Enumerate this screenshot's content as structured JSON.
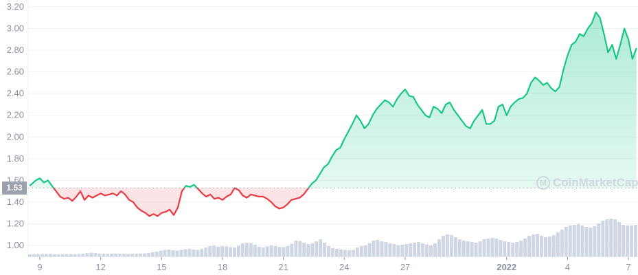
{
  "chart_data": {
    "type": "line",
    "title": "",
    "xlabel": "",
    "ylabel": "",
    "ylim": [
      0.9,
      3.22
    ],
    "grid": true,
    "reference_value": 1.53,
    "reference_label": "1.53",
    "y_ticks": [
      "3.20",
      "3.00",
      "2.80",
      "2.60",
      "2.40",
      "2.20",
      "2.00",
      "1.80",
      "1.60",
      "1.40",
      "1.20",
      "1.00"
    ],
    "x_ticks": [
      {
        "label": "9",
        "day": 9
      },
      {
        "label": "12",
        "day": 12
      },
      {
        "label": "15",
        "day": 15
      },
      {
        "label": "18",
        "day": 18
      },
      {
        "label": "21",
        "day": 21
      },
      {
        "label": "24",
        "day": 24
      },
      {
        "label": "27",
        "day": 27
      },
      {
        "label": "2022",
        "day": 32,
        "bold": true
      },
      {
        "label": "4",
        "day": 35
      },
      {
        "label": "7",
        "day": 38
      }
    ],
    "colors": {
      "up": "#16c784",
      "down": "#ea3943",
      "volume": "#cfd6e4",
      "grid": "#eff1f4",
      "axis_text": "#8a91a3"
    },
    "series": [
      {
        "name": "Price",
        "x": [
          8.5,
          8.8,
          9.0,
          9.2,
          9.4,
          9.6,
          9.8,
          10.0,
          10.2,
          10.4,
          10.6,
          10.8,
          11.0,
          11.2,
          11.4,
          11.6,
          11.8,
          12.0,
          12.2,
          12.4,
          12.6,
          12.8,
          13.0,
          13.2,
          13.4,
          13.6,
          13.8,
          14.0,
          14.2,
          14.4,
          14.6,
          14.8,
          15.0,
          15.2,
          15.4,
          15.6,
          15.8,
          16.0,
          16.2,
          16.4,
          16.6,
          16.8,
          17.0,
          17.2,
          17.4,
          17.6,
          17.8,
          18.0,
          18.2,
          18.4,
          18.6,
          18.8,
          19.0,
          19.2,
          19.4,
          19.6,
          19.8,
          20.0,
          20.2,
          20.4,
          20.6,
          20.8,
          21.0,
          21.2,
          21.4,
          21.6,
          21.8,
          22.0,
          22.2,
          22.4,
          22.6,
          22.8,
          23.0,
          23.2,
          23.4,
          23.6,
          23.8,
          24.0,
          24.2,
          24.4,
          24.6,
          24.8,
          25.0,
          25.2,
          25.4,
          25.6,
          25.8,
          26.0,
          26.2,
          26.4,
          26.6,
          26.8,
          27.0,
          27.2,
          27.4,
          27.6,
          27.8,
          28.0,
          28.2,
          28.4,
          28.6,
          28.8,
          29.0,
          29.2,
          29.4,
          29.6,
          29.8,
          30.0,
          30.2,
          30.4,
          30.6,
          30.8,
          31.0,
          31.2,
          31.4,
          31.6,
          31.8,
          32.0,
          32.2,
          32.4,
          32.6,
          32.8,
          33.0,
          33.2,
          33.4,
          33.6,
          33.8,
          34.0,
          34.2,
          34.4,
          34.6,
          34.8,
          35.0,
          35.2,
          35.4,
          35.6,
          35.8,
          36.0,
          36.2,
          36.4,
          36.6,
          36.8,
          37.0,
          37.2,
          37.4,
          37.6,
          37.8,
          38.0,
          38.2,
          38.4
        ],
        "values": [
          1.55,
          1.6,
          1.62,
          1.58,
          1.6,
          1.55,
          1.5,
          1.45,
          1.43,
          1.44,
          1.41,
          1.45,
          1.5,
          1.42,
          1.46,
          1.44,
          1.46,
          1.48,
          1.46,
          1.47,
          1.48,
          1.46,
          1.5,
          1.47,
          1.42,
          1.4,
          1.35,
          1.32,
          1.3,
          1.27,
          1.29,
          1.27,
          1.3,
          1.31,
          1.33,
          1.28,
          1.35,
          1.5,
          1.55,
          1.54,
          1.56,
          1.52,
          1.48,
          1.45,
          1.47,
          1.43,
          1.44,
          1.42,
          1.45,
          1.47,
          1.53,
          1.51,
          1.46,
          1.44,
          1.47,
          1.46,
          1.45,
          1.45,
          1.43,
          1.4,
          1.36,
          1.34,
          1.35,
          1.38,
          1.42,
          1.43,
          1.44,
          1.47,
          1.52,
          1.57,
          1.6,
          1.66,
          1.72,
          1.75,
          1.82,
          1.88,
          1.9,
          1.98,
          2.05,
          2.12,
          2.2,
          2.15,
          2.08,
          2.12,
          2.2,
          2.26,
          2.3,
          2.34,
          2.32,
          2.28,
          2.35,
          2.4,
          2.44,
          2.38,
          2.37,
          2.3,
          2.25,
          2.2,
          2.18,
          2.28,
          2.26,
          2.22,
          2.3,
          2.32,
          2.25,
          2.2,
          2.15,
          2.1,
          2.08,
          2.15,
          2.2,
          2.25,
          2.12,
          2.12,
          2.15,
          2.28,
          2.3,
          2.2,
          2.28,
          2.32,
          2.35,
          2.36,
          2.4,
          2.5,
          2.55,
          2.52,
          2.48,
          2.5,
          2.45,
          2.42,
          2.46,
          2.62,
          2.75,
          2.85,
          2.88,
          2.95,
          2.93,
          3.0,
          3.05,
          3.15,
          3.1,
          2.95,
          2.78,
          2.85,
          2.72,
          2.85,
          3.0,
          2.9,
          2.72,
          2.82
        ]
      },
      {
        "name": "Volume (relative)",
        "values": [
          0.3,
          0.32,
          0.33,
          0.34,
          0.36,
          0.37,
          0.32,
          0.28,
          0.3,
          0.32,
          0.33,
          0.3,
          0.35,
          0.4,
          0.5,
          0.55,
          0.5,
          0.42,
          0.4,
          0.38,
          0.4,
          0.42,
          0.4,
          0.38,
          0.36,
          0.38,
          0.4,
          0.42,
          0.44,
          0.5,
          0.6,
          0.7,
          0.85,
          0.95,
          1.0,
          0.9,
          0.85,
          0.95,
          1.05,
          1.1,
          1.0,
          0.95,
          1.1,
          1.3,
          1.5,
          1.55,
          1.4,
          1.5,
          1.45,
          1.35,
          1.3,
          1.55,
          1.9,
          2.0,
          1.95,
          1.7,
          1.4,
          1.3,
          1.45,
          1.6,
          1.5,
          1.4,
          1.35,
          1.5,
          1.85,
          2.3,
          2.25,
          2.0,
          1.8,
          1.9,
          2.2,
          2.5,
          2.0,
          1.5,
          1.2,
          1.1,
          1.0,
          0.95,
          0.9,
          0.95,
          1.3,
          1.5,
          1.6,
          1.9,
          2.3,
          2.4,
          2.2,
          2.1,
          1.9,
          1.8,
          1.65,
          1.7,
          1.8,
          1.9,
          2.0,
          2.1,
          1.9,
          1.75,
          1.6,
          1.9,
          2.5,
          3.0,
          3.2,
          3.1,
          2.8,
          2.5,
          2.3,
          2.2,
          2.1,
          2.0,
          2.2,
          2.5,
          2.6,
          2.7,
          2.6,
          2.4,
          2.2,
          2.1,
          2.0,
          2.1,
          2.3,
          2.6,
          3.0,
          3.2,
          3.3,
          3.0,
          2.8,
          2.9,
          3.1,
          3.5,
          3.9,
          4.3,
          4.5,
          4.6,
          4.7,
          4.5,
          4.3,
          4.2,
          4.4,
          4.8,
          5.2,
          5.4,
          5.5,
          5.4,
          5.0,
          4.6,
          4.5,
          4.5,
          4.6
        ]
      }
    ]
  },
  "watermark": {
    "text": "CoinMarketCap",
    "logo_glyph": "M"
  },
  "reference_badge": "1.53"
}
